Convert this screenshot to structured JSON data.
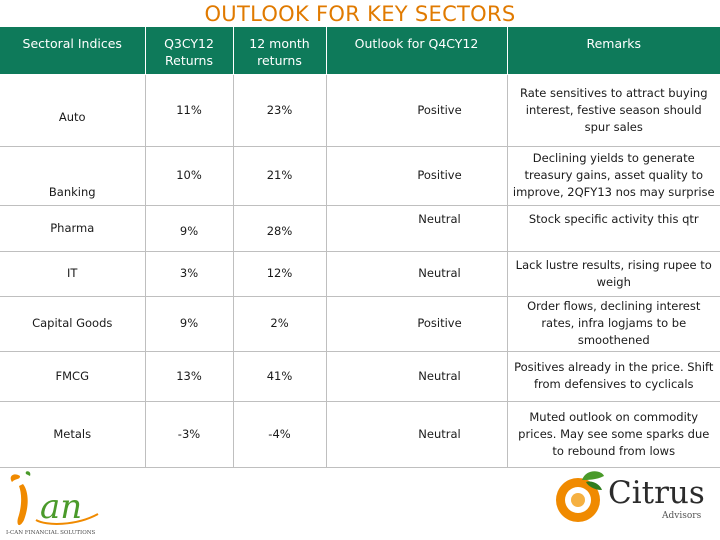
{
  "title": "OUTLOOK FOR KEY SECTORS",
  "table": {
    "headers": [
      "Sectoral Indices",
      "Q3CY12 Returns",
      "12 month returns",
      "Outlook for Q4CY12",
      "Remarks"
    ],
    "rows": [
      {
        "sector": "Auto",
        "q3": "11%",
        "m12": "23%",
        "outlook": "Positive",
        "remarks": "Rate sensitives to attract buying interest, festive season should spur sales"
      },
      {
        "sector": "Banking",
        "q3": "10%",
        "m12": "21%",
        "outlook": "Positive",
        "remarks": "Declining yields to generate treasury gains, asset quality to improve, 2QFY13 nos may surprise"
      },
      {
        "sector": "Pharma",
        "q3": "9%",
        "m12": "28%",
        "outlook": "Neutral",
        "remarks": "Stock specific activity this qtr"
      },
      {
        "sector": "IT",
        "q3": "3%",
        "m12": "12%",
        "outlook": "Neutral",
        "remarks": "Lack lustre results, rising rupee to weigh"
      },
      {
        "sector": "Capital Goods",
        "q3": "9%",
        "m12": "2%",
        "outlook": "Positive",
        "remarks": "Order flows, declining interest rates, infra logjams to be smoothened"
      },
      {
        "sector": "FMCG",
        "q3": "13%",
        "m12": "41%",
        "outlook": "Neutral",
        "remarks": "Positives already in the price. Shift from defensives to cyclicals"
      },
      {
        "sector": "Metals",
        "q3": "-3%",
        "m12": "-4%",
        "outlook": "Neutral",
        "remarks": "Muted outlook on commodity prices. May see some sparks due to rebound from lows"
      }
    ]
  },
  "logos": {
    "left": {
      "name": "Ican",
      "tagline": "I-CAN FINANCIAL SOLUTIONS"
    },
    "right": {
      "name": "Citrus",
      "tagline": "Advisors"
    }
  },
  "colors": {
    "title": "#e07a00",
    "header_bg": "#0e7a5a",
    "grid": "#bfbfbf",
    "accent_orange": "#f08a00",
    "accent_green": "#4a9a2a"
  }
}
